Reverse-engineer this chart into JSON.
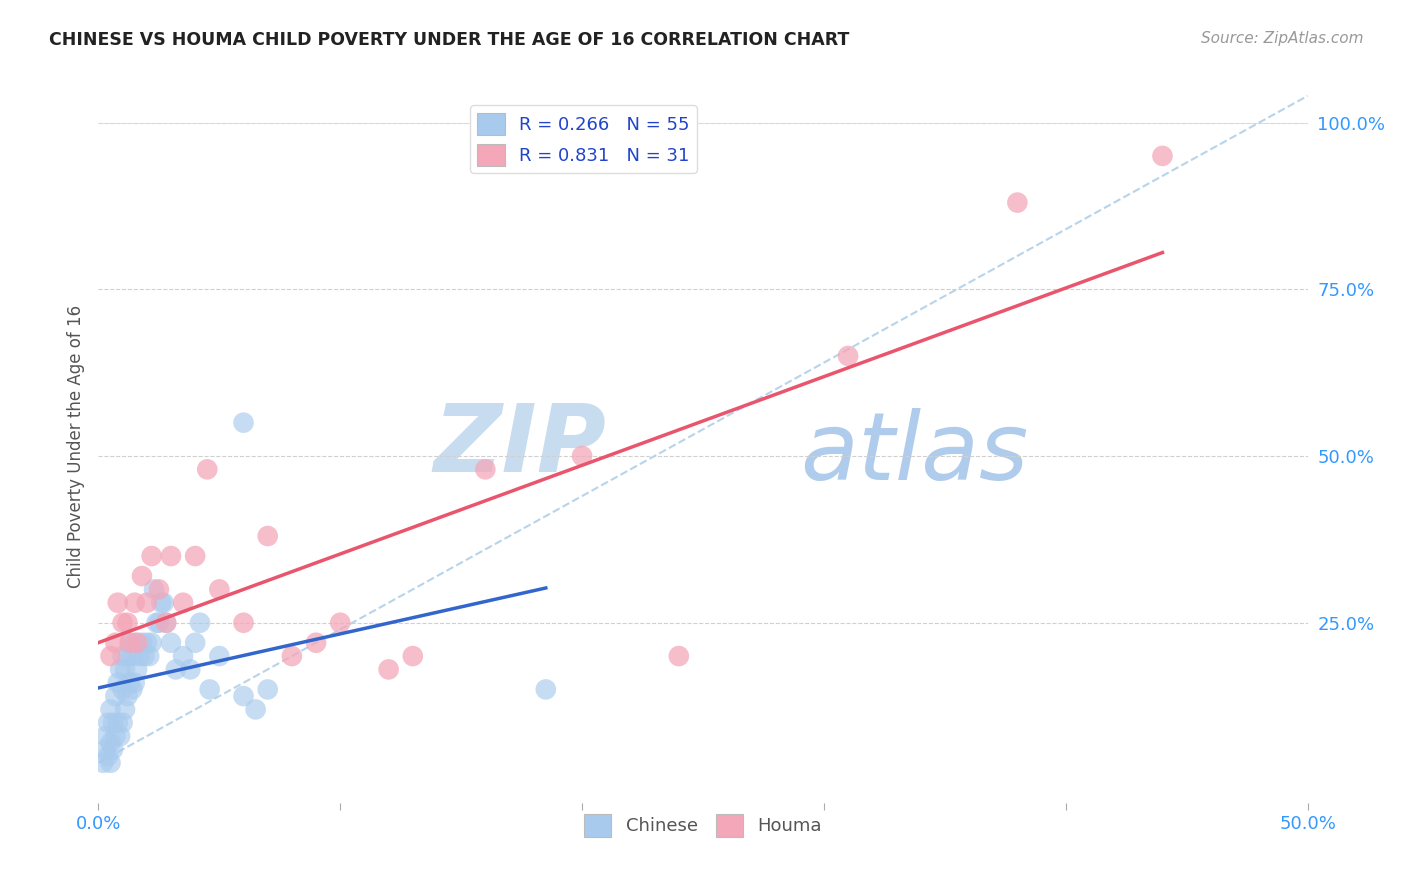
{
  "title": "CHINESE VS HOUMA CHILD POVERTY UNDER THE AGE OF 16 CORRELATION CHART",
  "source": "Source: ZipAtlas.com",
  "ylabel": "Child Poverty Under the Age of 16",
  "xlim": [
    0,
    0.5
  ],
  "ylim": [
    -0.02,
    1.05
  ],
  "xticks": [
    0.0,
    0.1,
    0.2,
    0.3,
    0.4,
    0.5
  ],
  "xticklabels": [
    "0.0%",
    "",
    "",
    "",
    "",
    "50.0%"
  ],
  "yticks_right": [
    0.0,
    0.25,
    0.5,
    0.75,
    1.0
  ],
  "yticklabels_right": [
    "",
    "25.0%",
    "50.0%",
    "75.0%",
    "100.0%"
  ],
  "chinese_R": 0.266,
  "chinese_N": 55,
  "houma_R": 0.831,
  "houma_N": 31,
  "chinese_color": "#A8CAED",
  "houma_color": "#F4A7B9",
  "chinese_line_color": "#3366CC",
  "houma_line_color": "#E8556D",
  "diagonal_color": "#B8D4EA",
  "watermark_zip": "ZIP",
  "watermark_atlas": "atlas",
  "watermark_color_zip": "#C8DCF0",
  "watermark_color_atlas": "#B0CCEC",
  "background_color": "#FFFFFF",
  "chinese_x": [
    0.002,
    0.003,
    0.003,
    0.004,
    0.004,
    0.005,
    0.005,
    0.005,
    0.006,
    0.006,
    0.007,
    0.007,
    0.008,
    0.008,
    0.009,
    0.009,
    0.01,
    0.01,
    0.01,
    0.011,
    0.011,
    0.012,
    0.012,
    0.013,
    0.013,
    0.014,
    0.014,
    0.015,
    0.015,
    0.016,
    0.017,
    0.018,
    0.019,
    0.02,
    0.021,
    0.022,
    0.023,
    0.024,
    0.025,
    0.026,
    0.027,
    0.028,
    0.03,
    0.032,
    0.035,
    0.038,
    0.04,
    0.042,
    0.046,
    0.05,
    0.06,
    0.065,
    0.07,
    0.185,
    0.06
  ],
  "chinese_y": [
    0.04,
    0.06,
    0.08,
    0.05,
    0.1,
    0.04,
    0.07,
    0.12,
    0.06,
    0.1,
    0.08,
    0.14,
    0.1,
    0.16,
    0.08,
    0.18,
    0.1,
    0.15,
    0.2,
    0.12,
    0.18,
    0.14,
    0.2,
    0.16,
    0.22,
    0.15,
    0.2,
    0.16,
    0.22,
    0.18,
    0.2,
    0.22,
    0.2,
    0.22,
    0.2,
    0.22,
    0.3,
    0.25,
    0.25,
    0.28,
    0.28,
    0.25,
    0.22,
    0.18,
    0.2,
    0.18,
    0.22,
    0.25,
    0.15,
    0.2,
    0.14,
    0.12,
    0.15,
    0.15,
    0.55
  ],
  "houma_x": [
    0.005,
    0.007,
    0.008,
    0.01,
    0.012,
    0.013,
    0.015,
    0.016,
    0.018,
    0.02,
    0.022,
    0.025,
    0.028,
    0.03,
    0.035,
    0.04,
    0.045,
    0.05,
    0.06,
    0.07,
    0.08,
    0.09,
    0.1,
    0.12,
    0.13,
    0.16,
    0.2,
    0.24,
    0.31,
    0.38,
    0.44
  ],
  "houma_y": [
    0.2,
    0.22,
    0.28,
    0.25,
    0.25,
    0.22,
    0.28,
    0.22,
    0.32,
    0.28,
    0.35,
    0.3,
    0.25,
    0.35,
    0.28,
    0.35,
    0.48,
    0.3,
    0.25,
    0.38,
    0.2,
    0.22,
    0.25,
    0.18,
    0.2,
    0.48,
    0.5,
    0.2,
    0.65,
    0.88,
    0.95
  ]
}
